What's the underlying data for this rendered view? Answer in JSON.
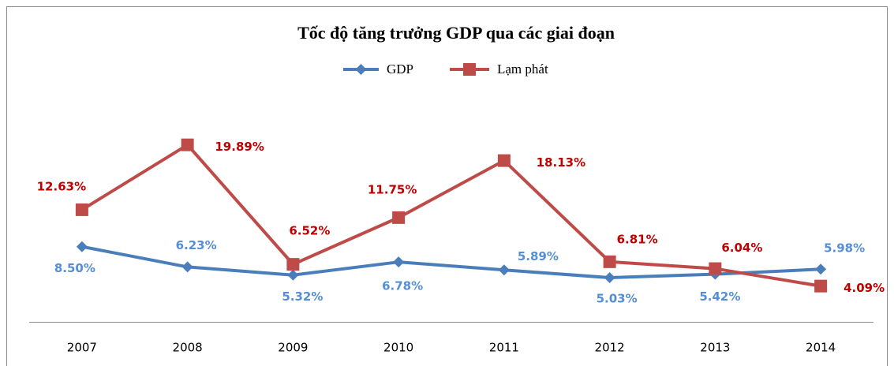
{
  "chart_data": {
    "type": "line",
    "title": "Tốc độ tăng trưởng GDP qua các giai đoạn",
    "categories": [
      "2007",
      "2008",
      "2009",
      "2010",
      "2011",
      "2012",
      "2013",
      "2014"
    ],
    "series": [
      {
        "name": "GDP",
        "color": "#4a7ebb",
        "label_color": "#558ed5",
        "marker": "diamond",
        "values": [
          8.5,
          6.23,
          5.32,
          6.78,
          5.89,
          5.03,
          5.42,
          5.98
        ],
        "value_labels": [
          "8.50%",
          "6.23%",
          "5.32%",
          "6.78%",
          "5.89%",
          "5.03%",
          "5.42%",
          "5.98%"
        ]
      },
      {
        "name": "Lạm phát",
        "color": "#be4b48",
        "label_color": "#c00000",
        "marker": "square",
        "values": [
          12.63,
          19.89,
          6.52,
          11.75,
          18.13,
          6.81,
          6.04,
          4.09
        ],
        "value_labels": [
          "12.63%",
          "19.89%",
          "6.52%",
          "11.75%",
          "18.13%",
          "6.81%",
          "6.04%",
          "4.09%"
        ]
      }
    ],
    "ylim": [
      0,
      25
    ],
    "legend": "top",
    "grid": false
  }
}
